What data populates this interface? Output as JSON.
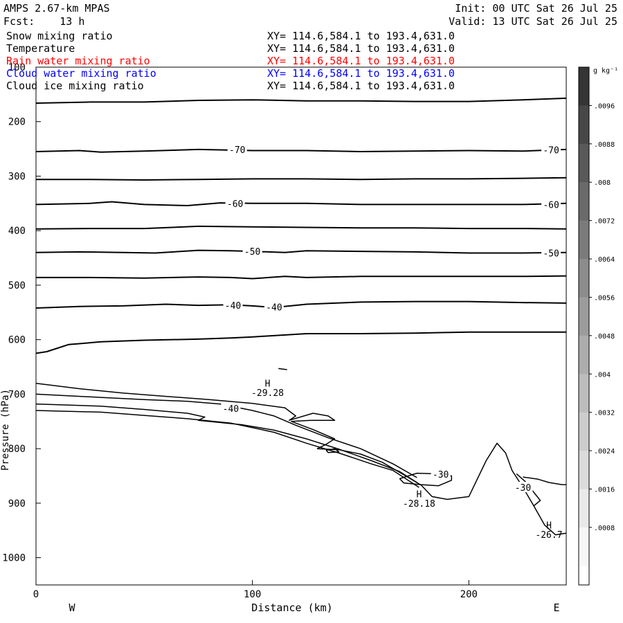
{
  "header": {
    "model": "AMPS 2.67-km MPAS",
    "forecast": "Fcst:    13 h",
    "init": "Init: 00 UTC Sat 26 Jul 25",
    "valid": "Valid: 13 UTC Sat 26 Jul 25"
  },
  "fields": [
    {
      "name": "Snow mixing ratio",
      "xy": "XY= 114.6,584.1 to 193.4,631.0",
      "color": "#000000"
    },
    {
      "name": "Temperature",
      "xy": "XY= 114.6,584.1 to 193.4,631.0",
      "color": "#000000"
    },
    {
      "name": "Rain water mixing ratio",
      "xy": "XY= 114.6,584.1 to 193.4,631.0",
      "color": "#ff0000"
    },
    {
      "name": "Cloud water mixing ratio",
      "xy": "XY= 114.6,584.1 to 193.4,631.0",
      "color": "#0000ff"
    },
    {
      "name": "Cloud ice mixing ratio",
      "xy": "XY= 114.6,584.1 to 193.4,631.0",
      "color": "#000000"
    }
  ],
  "chart_data": {
    "type": "contour",
    "xlabel": "Distance (km)",
    "ylabel": "Pressure (hPa)",
    "xlim": [
      0,
      245
    ],
    "ylim": [
      100,
      1050
    ],
    "x_ticks": [
      0,
      100,
      200
    ],
    "y_ticks": [
      100,
      200,
      300,
      400,
      500,
      600,
      700,
      800,
      900,
      1000
    ],
    "direction_labels": {
      "left": "W",
      "right": "E"
    },
    "colorbar": {
      "unit": "g kg⁻¹",
      "ticks": [
        ".0096",
        ".0088",
        ".008",
        ".0072",
        ".0064",
        ".0056",
        ".0048",
        ".004",
        ".0032",
        ".0024",
        ".0016",
        ".0008"
      ],
      "colors": [
        "#353535",
        "#474747",
        "#595959",
        "#6a6a6a",
        "#7b7b7b",
        "#8c8c8c",
        "#9c9c9c",
        "#adadad",
        "#bdbdbd",
        "#cccccc",
        "#dbdbdb",
        "#e9e9e9",
        "#f6f6f6"
      ]
    },
    "temperature_contours": [
      {
        "points": [
          [
            0,
            166
          ],
          [
            25,
            164
          ],
          [
            50,
            164
          ],
          [
            75,
            161
          ],
          [
            100,
            160
          ],
          [
            125,
            162
          ],
          [
            150,
            162
          ],
          [
            175,
            163
          ],
          [
            200,
            163
          ],
          [
            225,
            160
          ],
          [
            245,
            157
          ]
        ]
      },
      {
        "level": "-70",
        "points": [
          [
            0,
            255
          ],
          [
            20,
            253
          ],
          [
            30,
            256
          ],
          [
            50,
            254
          ],
          [
            75,
            251
          ],
          [
            100,
            253
          ],
          [
            125,
            253
          ],
          [
            150,
            255
          ],
          [
            175,
            254
          ],
          [
            200,
            253
          ],
          [
            225,
            254
          ],
          [
            245,
            251
          ]
        ]
      },
      {
        "points": [
          [
            0,
            306
          ],
          [
            25,
            306
          ],
          [
            50,
            307
          ],
          [
            75,
            306
          ],
          [
            100,
            305
          ],
          [
            125,
            305
          ],
          [
            150,
            306
          ],
          [
            175,
            305
          ],
          [
            200,
            305
          ],
          [
            225,
            304
          ],
          [
            245,
            303
          ]
        ]
      },
      {
        "level": "-60",
        "points": [
          [
            0,
            352
          ],
          [
            25,
            350
          ],
          [
            35,
            347
          ],
          [
            50,
            352
          ],
          [
            70,
            354
          ],
          [
            85,
            349
          ],
          [
            100,
            350
          ],
          [
            125,
            350
          ],
          [
            150,
            352
          ],
          [
            175,
            352
          ],
          [
            200,
            352
          ],
          [
            225,
            352
          ],
          [
            245,
            350
          ]
        ]
      },
      {
        "points": [
          [
            0,
            397
          ],
          [
            25,
            396
          ],
          [
            50,
            396
          ],
          [
            75,
            392
          ],
          [
            100,
            393
          ],
          [
            125,
            394
          ],
          [
            150,
            395
          ],
          [
            175,
            395
          ],
          [
            200,
            396
          ],
          [
            225,
            396
          ],
          [
            245,
            397
          ]
        ]
      },
      {
        "level": "-50",
        "points": [
          [
            0,
            440
          ],
          [
            20,
            439
          ],
          [
            40,
            440
          ],
          [
            55,
            441
          ],
          [
            75,
            436
          ],
          [
            90,
            437
          ],
          [
            100,
            438
          ],
          [
            115,
            440
          ],
          [
            125,
            437
          ],
          [
            150,
            438
          ],
          [
            175,
            439
          ],
          [
            200,
            441
          ],
          [
            225,
            441
          ],
          [
            245,
            440
          ]
        ]
      },
      {
        "points": [
          [
            0,
            486
          ],
          [
            25,
            486
          ],
          [
            50,
            487
          ],
          [
            75,
            485
          ],
          [
            90,
            486
          ],
          [
            100,
            488
          ],
          [
            115,
            484
          ],
          [
            125,
            486
          ],
          [
            150,
            484
          ],
          [
            175,
            484
          ],
          [
            200,
            484
          ],
          [
            225,
            484
          ],
          [
            245,
            483
          ]
        ]
      },
      {
        "level": "-40",
        "points": [
          [
            0,
            542
          ],
          [
            20,
            539
          ],
          [
            40,
            538
          ],
          [
            60,
            535
          ],
          [
            75,
            537
          ],
          [
            90,
            536
          ],
          [
            100,
            538
          ],
          [
            110,
            541
          ],
          [
            125,
            535
          ],
          [
            150,
            531
          ],
          [
            175,
            530
          ],
          [
            200,
            530
          ],
          [
            225,
            532
          ],
          [
            245,
            533
          ]
        ]
      },
      {
        "points": [
          [
            0,
            625
          ],
          [
            5,
            622
          ],
          [
            15,
            609
          ],
          [
            30,
            604
          ],
          [
            50,
            601
          ],
          [
            75,
            599
          ],
          [
            90,
            597
          ],
          [
            100,
            595
          ],
          [
            125,
            589
          ],
          [
            150,
            589
          ],
          [
            175,
            588
          ],
          [
            200,
            586
          ],
          [
            225,
            586
          ],
          [
            245,
            586
          ]
        ]
      }
    ],
    "contour_labels": [
      {
        "text": "-70",
        "x": 93,
        "y": 251
      },
      {
        "text": "-70",
        "x": 238,
        "y": 252
      },
      {
        "text": "-60",
        "x": 92,
        "y": 350
      },
      {
        "text": "-60",
        "x": 238,
        "y": 352
      },
      {
        "text": "-50",
        "x": 100,
        "y": 438
      },
      {
        "text": "-50",
        "x": 238,
        "y": 441
      },
      {
        "text": "-40",
        "x": 91,
        "y": 537
      },
      {
        "text": "-40",
        "x": 110,
        "y": 540
      },
      {
        "text": "-40",
        "x": 90,
        "y": 726
      },
      {
        "text": "-30",
        "x": 187,
        "y": 847
      },
      {
        "text": "-30",
        "x": 225,
        "y": 871
      }
    ],
    "extrema": [
      {
        "mark": "H",
        "value": "-29.28",
        "x": 107,
        "mark_y": 680,
        "value_y": 697
      },
      {
        "mark": "H",
        "value": "-28.18",
        "x": 177,
        "mark_y": 883,
        "value_y": 900
      },
      {
        "mark": "H",
        "value": "-26.7",
        "x": 237,
        "mark_y": 940,
        "value_y": 957
      }
    ],
    "lower_contours": [
      {
        "points": [
          [
            0,
            680
          ],
          [
            20,
            690
          ],
          [
            40,
            698
          ],
          [
            60,
            704
          ],
          [
            80,
            710
          ],
          [
            100,
            717
          ],
          [
            115,
            725
          ],
          [
            120,
            740
          ],
          [
            117,
            748
          ],
          [
            128,
            735
          ],
          [
            135,
            740
          ],
          [
            138,
            748
          ],
          [
            127,
            748
          ],
          [
            118,
            750
          ],
          [
            128,
            765
          ],
          [
            138,
            782
          ],
          [
            134,
            792
          ],
          [
            130,
            800
          ],
          [
            140,
            802
          ],
          [
            150,
            810
          ],
          [
            160,
            825
          ],
          [
            170,
            848
          ],
          [
            178,
            867
          ],
          [
            183,
            888
          ],
          [
            190,
            893
          ],
          [
            200,
            888
          ],
          [
            208,
            822
          ],
          [
            213,
            790
          ],
          [
            217,
            808
          ],
          [
            220,
            840
          ],
          [
            225,
            871
          ],
          [
            230,
            905
          ],
          [
            235,
            940
          ],
          [
            240,
            958
          ],
          [
            245,
            955
          ]
        ]
      },
      {
        "points": [
          [
            0,
            700
          ],
          [
            30,
            706
          ],
          [
            50,
            710
          ],
          [
            70,
            713
          ],
          [
            85,
            718
          ],
          [
            100,
            730
          ],
          [
            110,
            740
          ],
          [
            120,
            757
          ],
          [
            135,
            780
          ],
          [
            150,
            800
          ],
          [
            165,
            828
          ],
          [
            176,
            853
          ]
        ]
      },
      {
        "points": [
          [
            0,
            718
          ],
          [
            30,
            722
          ],
          [
            50,
            728
          ],
          [
            70,
            735
          ],
          [
            78,
            742
          ],
          [
            75,
            748
          ],
          [
            95,
            756
          ],
          [
            110,
            766
          ],
          [
            125,
            782
          ],
          [
            140,
            801
          ],
          [
            155,
            822
          ],
          [
            168,
            842
          ],
          [
            176,
            862
          ]
        ]
      },
      {
        "points": [
          [
            0,
            730
          ],
          [
            30,
            733
          ],
          [
            50,
            739
          ],
          [
            70,
            745
          ],
          [
            90,
            753
          ],
          [
            110,
            770
          ],
          [
            125,
            790
          ],
          [
            140,
            808
          ],
          [
            155,
            828
          ],
          [
            165,
            840
          ],
          [
            177,
            871
          ]
        ]
      },
      {
        "points": [
          [
            168,
            855
          ],
          [
            176,
            845
          ],
          [
            184,
            846
          ],
          [
            192,
            850
          ],
          [
            192,
            858
          ],
          [
            186,
            868
          ],
          [
            178,
            866
          ],
          [
            170,
            863
          ],
          [
            168,
            855
          ]
        ]
      },
      {
        "points": [
          [
            134,
            803
          ],
          [
            138,
            800
          ],
          [
            140,
            806
          ],
          [
            135,
            807
          ],
          [
            134,
            803
          ]
        ]
      },
      {
        "points": [
          [
            112,
            653
          ],
          [
            116,
            655
          ]
        ]
      },
      {
        "points": [
          [
            225,
            852
          ],
          [
            232,
            856
          ],
          [
            237,
            862
          ],
          [
            243,
            866
          ],
          [
            245,
            866
          ]
        ]
      },
      {
        "points": [
          [
            222,
            846
          ],
          [
            226,
            860
          ],
          [
            230,
            880
          ],
          [
            233,
            895
          ],
          [
            230,
            905
          ]
        ]
      }
    ]
  }
}
